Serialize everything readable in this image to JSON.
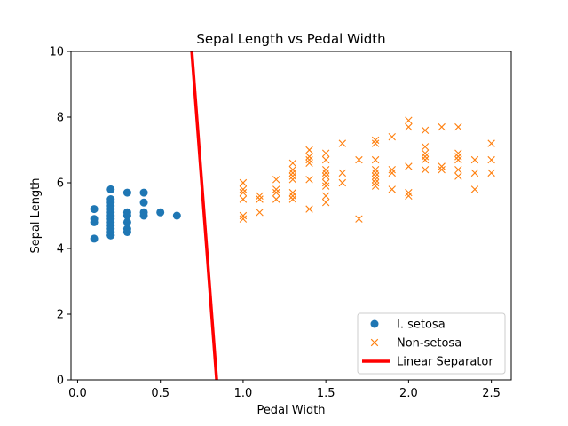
{
  "chart_data": {
    "type": "scatter",
    "title": "Sepal Length vs Pedal Width",
    "xlabel": "Pedal Width",
    "ylabel": "Sepal Length",
    "xlim": [
      -0.04,
      2.62
    ],
    "ylim": [
      0,
      10
    ],
    "x_ticks": [
      "0.0",
      "0.5",
      "1.0",
      "1.5",
      "2.0",
      "2.5"
    ],
    "x_tick_values": [
      0.0,
      0.5,
      1.0,
      1.5,
      2.0,
      2.5
    ],
    "y_ticks": [
      "0",
      "2",
      "4",
      "6",
      "8",
      "10"
    ],
    "y_tick_values": [
      0,
      2,
      4,
      6,
      8,
      10
    ],
    "grid": false,
    "legend_position": "lower-right",
    "colors": {
      "setosa": "#1f77b4",
      "non_setosa": "#ff7f0e",
      "separator": "#ff0000"
    },
    "series": [
      {
        "name": "I. setosa",
        "marker": "circle",
        "points": [
          [
            0.1,
            5.2
          ],
          [
            0.1,
            4.9
          ],
          [
            0.1,
            4.8
          ],
          [
            0.1,
            4.3
          ],
          [
            0.2,
            5.8
          ],
          [
            0.2,
            5.5
          ],
          [
            0.2,
            5.4
          ],
          [
            0.2,
            5.3
          ],
          [
            0.2,
            5.2
          ],
          [
            0.2,
            5.1
          ],
          [
            0.2,
            5.0
          ],
          [
            0.2,
            4.9
          ],
          [
            0.2,
            4.8
          ],
          [
            0.2,
            4.7
          ],
          [
            0.2,
            4.6
          ],
          [
            0.2,
            4.5
          ],
          [
            0.2,
            4.4
          ],
          [
            0.2,
            4.4
          ],
          [
            0.3,
            5.7
          ],
          [
            0.3,
            5.1
          ],
          [
            0.3,
            5.0
          ],
          [
            0.3,
            4.8
          ],
          [
            0.3,
            4.6
          ],
          [
            0.3,
            4.5
          ],
          [
            0.4,
            5.7
          ],
          [
            0.4,
            5.4
          ],
          [
            0.4,
            5.1
          ],
          [
            0.4,
            5.0
          ],
          [
            0.5,
            5.1
          ],
          [
            0.6,
            5.0
          ]
        ]
      },
      {
        "name": "Non-setosa",
        "marker": "x",
        "points": [
          [
            1.0,
            6.0
          ],
          [
            1.0,
            5.8
          ],
          [
            1.0,
            5.7
          ],
          [
            1.0,
            5.5
          ],
          [
            1.0,
            5.0
          ],
          [
            1.0,
            4.9
          ],
          [
            1.1,
            5.6
          ],
          [
            1.1,
            5.5
          ],
          [
            1.1,
            5.1
          ],
          [
            1.2,
            6.1
          ],
          [
            1.2,
            5.8
          ],
          [
            1.2,
            5.7
          ],
          [
            1.2,
            5.5
          ],
          [
            1.3,
            6.6
          ],
          [
            1.3,
            6.4
          ],
          [
            1.3,
            6.3
          ],
          [
            1.3,
            6.2
          ],
          [
            1.3,
            6.1
          ],
          [
            1.3,
            5.7
          ],
          [
            1.3,
            5.6
          ],
          [
            1.3,
            5.5
          ],
          [
            1.4,
            7.0
          ],
          [
            1.4,
            6.8
          ],
          [
            1.4,
            6.7
          ],
          [
            1.4,
            6.6
          ],
          [
            1.4,
            6.1
          ],
          [
            1.4,
            5.2
          ],
          [
            1.5,
            6.9
          ],
          [
            1.5,
            6.7
          ],
          [
            1.5,
            6.4
          ],
          [
            1.5,
            6.3
          ],
          [
            1.5,
            6.2
          ],
          [
            1.5,
            6.0
          ],
          [
            1.5,
            5.9
          ],
          [
            1.5,
            5.6
          ],
          [
            1.5,
            5.4
          ],
          [
            1.6,
            7.2
          ],
          [
            1.6,
            6.3
          ],
          [
            1.6,
            6.0
          ],
          [
            1.7,
            6.7
          ],
          [
            1.7,
            4.9
          ],
          [
            1.8,
            7.3
          ],
          [
            1.8,
            7.2
          ],
          [
            1.8,
            6.7
          ],
          [
            1.8,
            6.4
          ],
          [
            1.8,
            6.3
          ],
          [
            1.8,
            6.2
          ],
          [
            1.8,
            6.1
          ],
          [
            1.8,
            6.0
          ],
          [
            1.8,
            5.9
          ],
          [
            1.9,
            7.4
          ],
          [
            1.9,
            6.4
          ],
          [
            1.9,
            6.3
          ],
          [
            1.9,
            5.8
          ],
          [
            2.0,
            7.9
          ],
          [
            2.0,
            7.7
          ],
          [
            2.0,
            6.5
          ],
          [
            2.0,
            5.7
          ],
          [
            2.0,
            5.6
          ],
          [
            2.1,
            7.6
          ],
          [
            2.1,
            7.1
          ],
          [
            2.1,
            6.9
          ],
          [
            2.1,
            6.8
          ],
          [
            2.1,
            6.7
          ],
          [
            2.1,
            6.4
          ],
          [
            2.2,
            7.7
          ],
          [
            2.2,
            6.5
          ],
          [
            2.2,
            6.4
          ],
          [
            2.3,
            7.7
          ],
          [
            2.3,
            6.9
          ],
          [
            2.3,
            6.8
          ],
          [
            2.3,
            6.7
          ],
          [
            2.3,
            6.4
          ],
          [
            2.3,
            6.2
          ],
          [
            2.4,
            6.7
          ],
          [
            2.4,
            6.3
          ],
          [
            2.4,
            5.8
          ],
          [
            2.5,
            7.2
          ],
          [
            2.5,
            6.7
          ],
          [
            2.5,
            6.3
          ]
        ]
      },
      {
        "name": "Linear Separator",
        "type": "line",
        "points": [
          [
            0.69,
            10.0
          ],
          [
            0.84,
            0.0
          ]
        ]
      }
    ]
  }
}
